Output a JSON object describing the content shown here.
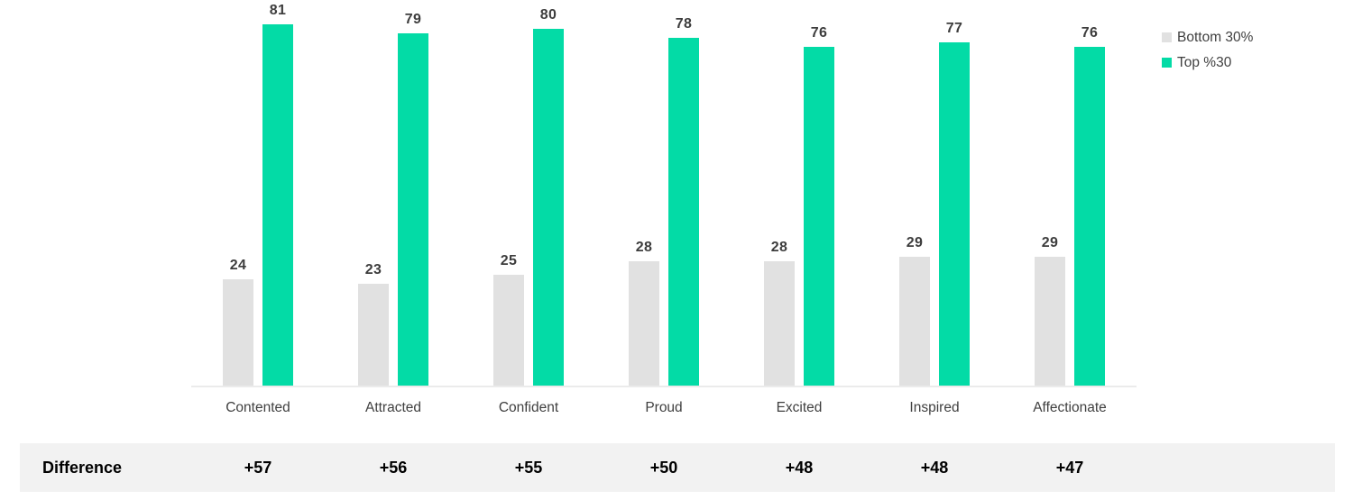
{
  "chart_data": {
    "type": "bar",
    "title": "",
    "xlabel": "",
    "ylabel": "",
    "categories": [
      "Contented",
      "Attracted",
      "Confident",
      "Proud",
      "Excited",
      "Inspired",
      "Affectionate"
    ],
    "series": [
      {
        "name": "Bottom 30%",
        "color": "#e1e1e1",
        "values": [
          24,
          23,
          25,
          28,
          28,
          29,
          29
        ]
      },
      {
        "name": "Top %30",
        "color": "#03dba6",
        "values": [
          81,
          79,
          80,
          78,
          76,
          77,
          76
        ]
      }
    ],
    "ylim": [
      0,
      85
    ],
    "grid": false,
    "value_labels": true,
    "legend_position": "top-right"
  },
  "difference_row": {
    "label": "Difference",
    "values": [
      "+57",
      "+56",
      "+55",
      "+50",
      "+48",
      "+48",
      "+47"
    ]
  },
  "colors": {
    "bar_bottom": "#e1e1e1",
    "bar_top": "#03dba6",
    "value_label_text": "#3d3d3d",
    "category_label_text": "#3f3f3f",
    "axis_line": "#ebebeb",
    "difference_strip_bg": "#f2f2f2",
    "difference_text": "#000000",
    "background": "#ffffff"
  }
}
